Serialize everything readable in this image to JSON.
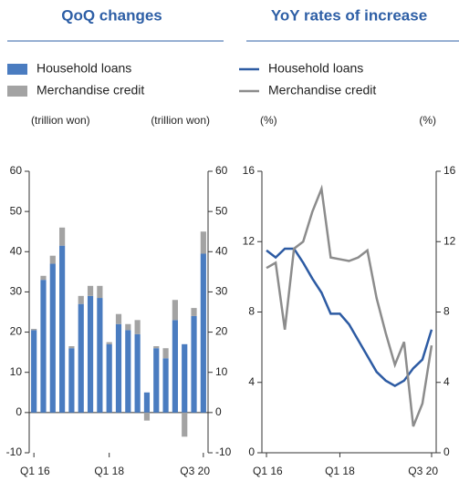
{
  "chart_data": [
    {
      "type": "bar",
      "stacked": true,
      "title": "QoQ changes",
      "y_label": "(trillion won)",
      "y2_label": "(trillion won)",
      "categories": [
        "Q1 16",
        null,
        null,
        null,
        null,
        null,
        null,
        null,
        "Q1 18",
        null,
        null,
        null,
        null,
        null,
        null,
        null,
        null,
        null,
        "Q3 20"
      ],
      "series": [
        {
          "name": "Household loans",
          "color": "#4a7cc0",
          "values": [
            20.5,
            33,
            37,
            41.5,
            16,
            27,
            29,
            28.5,
            17,
            22,
            20.5,
            19.5,
            5,
            16,
            13.5,
            23,
            17,
            24,
            39.5
          ]
        },
        {
          "name": "Merchandise credit",
          "color": "#a3a3a3",
          "values": [
            0.3,
            1,
            2,
            4.5,
            0.5,
            2,
            2.5,
            3,
            0.5,
            2.5,
            1.5,
            3.5,
            -2,
            0.5,
            2.5,
            5,
            -6,
            2,
            5.5
          ]
        }
      ],
      "ylim": [
        -10,
        60
      ],
      "yticks": [
        -10,
        0,
        10,
        20,
        30,
        40,
        50,
        60
      ]
    },
    {
      "type": "line",
      "title": "YoY rates of increase",
      "y_label": "(%)",
      "y2_label": "(%)",
      "categories": [
        "Q1 16",
        null,
        null,
        null,
        null,
        null,
        null,
        null,
        "Q1 18",
        null,
        null,
        null,
        null,
        null,
        null,
        null,
        null,
        null,
        "Q3 20"
      ],
      "series": [
        {
          "name": "Household loans",
          "color": "#2d5ba3",
          "values": [
            11.5,
            11.1,
            11.6,
            11.6,
            10.8,
            9.9,
            9.1,
            7.9,
            7.9,
            7.3,
            6.4,
            5.5,
            4.6,
            4.1,
            3.8,
            4.1,
            4.8,
            5.3,
            7
          ]
        },
        {
          "name": "Merchandise credit",
          "color": "#8c8c8c",
          "values": [
            10.5,
            10.8,
            7,
            11.6,
            12,
            13.7,
            15,
            11.1,
            11,
            10.9,
            11.1,
            11.5,
            8.8,
            6.8,
            5,
            6.3,
            1.5,
            2.8,
            6.1
          ]
        }
      ],
      "ylim": [
        0,
        16
      ],
      "yticks": [
        0,
        4,
        8,
        12,
        16
      ]
    }
  ]
}
